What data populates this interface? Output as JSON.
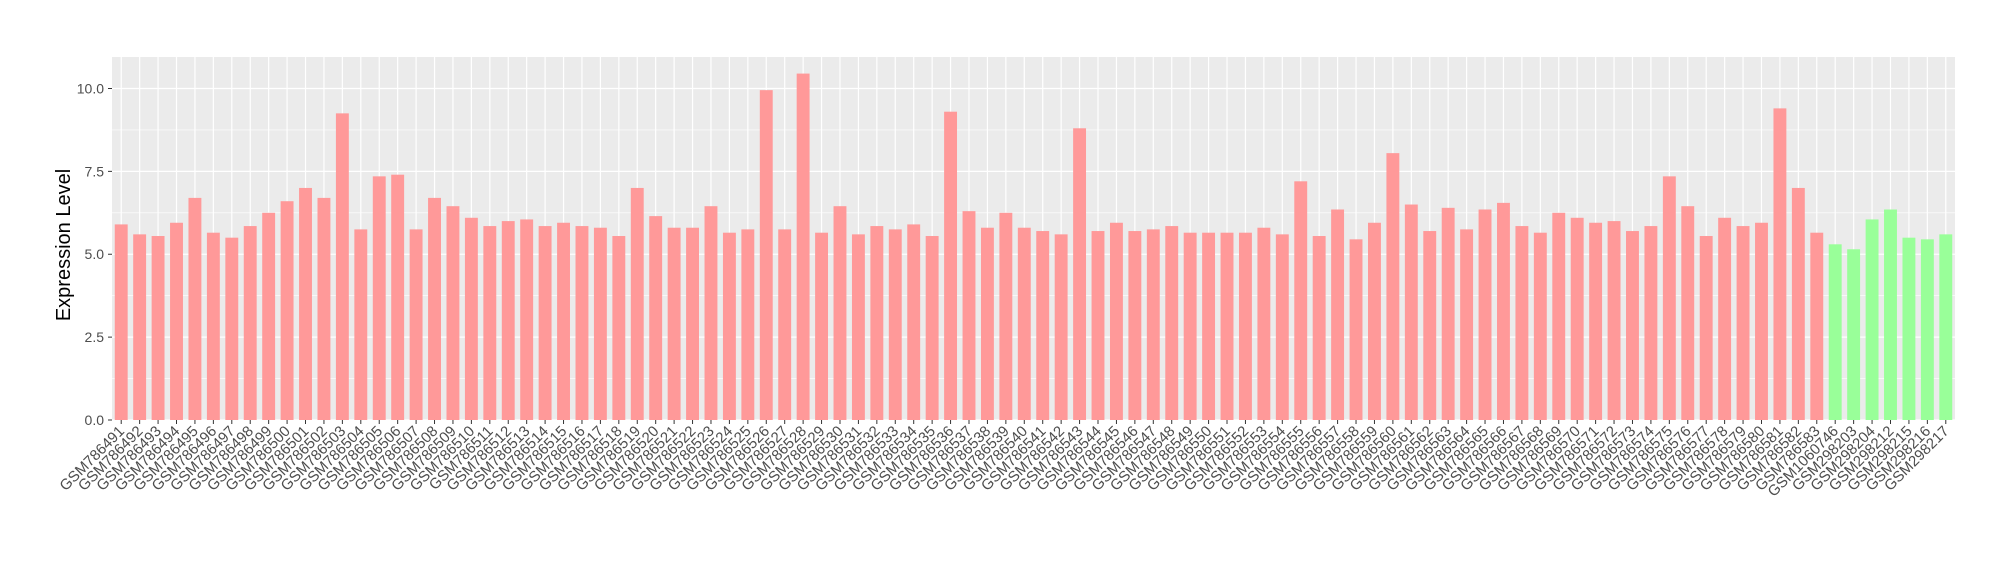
{
  "chart_data": {
    "type": "bar",
    "title": "",
    "xlabel": "",
    "ylabel": "Expression Level",
    "ylim": [
      0,
      10.95
    ],
    "yticks": [
      "0.0",
      "2.5",
      "5.0",
      "7.5",
      "10.0"
    ],
    "grid": true,
    "legend": "none",
    "categories": [
      "GSM786491",
      "GSM786492",
      "GSM786493",
      "GSM786494",
      "GSM786495",
      "GSM786496",
      "GSM786497",
      "GSM786498",
      "GSM786499",
      "GSM786500",
      "GSM786501",
      "GSM786502",
      "GSM786503",
      "GSM786504",
      "GSM786505",
      "GSM786506",
      "GSM786507",
      "GSM786508",
      "GSM786509",
      "GSM786510",
      "GSM786511",
      "GSM786512",
      "GSM786513",
      "GSM786514",
      "GSM786515",
      "GSM786516",
      "GSM786517",
      "GSM786518",
      "GSM786519",
      "GSM786520",
      "GSM786521",
      "GSM786522",
      "GSM786523",
      "GSM786524",
      "GSM786525",
      "GSM786526",
      "GSM786527",
      "GSM786528",
      "GSM786529",
      "GSM786530",
      "GSM786531",
      "GSM786532",
      "GSM786533",
      "GSM786534",
      "GSM786535",
      "GSM786536",
      "GSM786537",
      "GSM786538",
      "GSM786539",
      "GSM786540",
      "GSM786541",
      "GSM786542",
      "GSM786543",
      "GSM786544",
      "GSM786545",
      "GSM786546",
      "GSM786547",
      "GSM786548",
      "GSM786549",
      "GSM786550",
      "GSM786551",
      "GSM786552",
      "GSM786553",
      "GSM786554",
      "GSM786555",
      "GSM786556",
      "GSM786557",
      "GSM786558",
      "GSM786559",
      "GSM786560",
      "GSM786561",
      "GSM786562",
      "GSM786563",
      "GSM786564",
      "GSM786565",
      "GSM786566",
      "GSM786567",
      "GSM786568",
      "GSM786569",
      "GSM786570",
      "GSM786571",
      "GSM786572",
      "GSM786573",
      "GSM786574",
      "GSM786575",
      "GSM786576",
      "GSM786577",
      "GSM786578",
      "GSM786579",
      "GSM786580",
      "GSM786581",
      "GSM786582",
      "GSM786583",
      "GSM1060746",
      "GSM298203",
      "GSM298204",
      "GSM298212",
      "GSM298215",
      "GSM298216",
      "GSM298217"
    ],
    "values": [
      5.9,
      5.6,
      5.55,
      5.95,
      6.7,
      5.65,
      5.5,
      5.85,
      6.25,
      6.6,
      7.0,
      6.7,
      9.25,
      5.75,
      7.35,
      7.4,
      5.75,
      6.7,
      6.45,
      6.1,
      5.85,
      6.0,
      6.05,
      5.85,
      5.95,
      5.85,
      5.8,
      5.55,
      7.0,
      6.15,
      5.8,
      5.8,
      6.45,
      5.65,
      5.75,
      9.95,
      5.75,
      10.45,
      5.65,
      6.45,
      5.6,
      5.85,
      5.75,
      5.9,
      5.55,
      9.3,
      6.3,
      5.8,
      6.25,
      5.8,
      5.7,
      5.6,
      8.8,
      5.7,
      5.95,
      5.7,
      5.75,
      5.85,
      5.65,
      5.65,
      5.65,
      5.65,
      5.8,
      5.6,
      7.2,
      5.55,
      6.35,
      5.45,
      5.95,
      8.05,
      6.5,
      5.7,
      6.4,
      5.75,
      6.35,
      6.55,
      5.85,
      5.65,
      6.25,
      6.1,
      5.95,
      6.0,
      5.7,
      5.85,
      7.35,
      6.45,
      5.55,
      6.1,
      5.85,
      5.95,
      9.4,
      7.0,
      5.65,
      5.3,
      5.15,
      6.05,
      6.35,
      5.5,
      5.45,
      5.6
    ],
    "group_sizes": [
      93,
      7
    ],
    "colors": [
      "#ff9999",
      "#99ff99"
    ],
    "panel_background": "#ebebeb",
    "grid_color": "#ffffff"
  }
}
